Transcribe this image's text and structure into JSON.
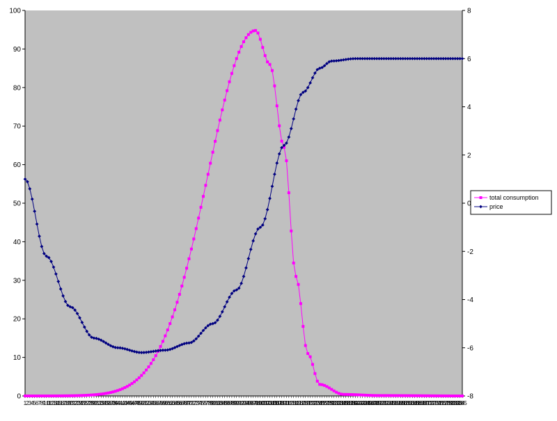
{
  "chart_data": {
    "type": "line",
    "title": "",
    "xlabel": "",
    "ylabel": "",
    "y2label": "",
    "ylim": [
      0,
      100
    ],
    "y2lim": [
      -8,
      8
    ],
    "yticks": [
      0,
      10,
      20,
      30,
      40,
      50,
      60,
      70,
      80,
      90,
      100
    ],
    "y2ticks": [
      -8,
      -6,
      -4,
      -2,
      0,
      2,
      4,
      6,
      8
    ],
    "x_points": 185,
    "x_label_every": 1,
    "grid": false,
    "plot_background": "#c0c0c0",
    "legend_position": "right",
    "series": [
      {
        "name": "total consumption",
        "axis": "left",
        "color": "#ff00ff",
        "marker": "square",
        "model": "gaussian",
        "peak_x": 98,
        "peak_y": 94.8,
        "sigma": 20,
        "values_at": {
          "1": 0.2,
          "40": 3.8,
          "60": 13.5,
          "70": 27.7,
          "80": 56.0,
          "88": 82.4,
          "93": 92.6,
          "98": 94.8,
          "104": 86.0,
          "110": 64.5,
          "115": 31.0,
          "120": 11.0,
          "125": 3.0,
          "135": 0.4,
          "150": 0.1,
          "185": 0.0
        }
      },
      {
        "name": "price",
        "axis": "right",
        "color": "#000080",
        "marker": "diamond",
        "model": "bowl-then-sigmoid",
        "values_at": {
          "1": 1.0,
          "10": -2.2,
          "20": -4.3,
          "30": -5.6,
          "40": -6.0,
          "50": -6.2,
          "60": -6.1,
          "70": -5.8,
          "80": -5.0,
          "90": -3.6,
          "100": -1.0,
          "110": 2.4,
          "118": 4.6,
          "125": 5.6,
          "130": 5.9,
          "140": 6.0,
          "185": 6.0
        }
      }
    ]
  }
}
